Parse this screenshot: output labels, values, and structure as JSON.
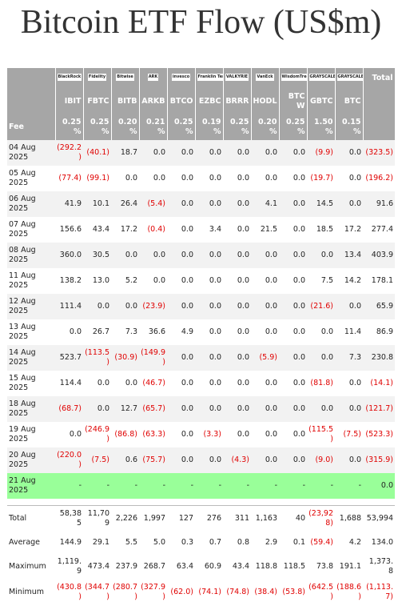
{
  "title": "Bitcoin ETF Flow (US$m)",
  "table": {
    "logos": [
      "BlackRock",
      "Fidelity",
      "Bitwise",
      "ARK",
      "invesco",
      "Franklin Templeton",
      "VALKYRIE",
      "VanEck",
      "WisdomTree",
      "GRAYSCALE",
      "GRAYSCALE",
      "Total"
    ],
    "tickers": [
      "IBIT",
      "FBTC",
      "BITB",
      "ARKB",
      "BTCO",
      "EZBC",
      "BRRR",
      "HODL",
      "BTCW",
      "GBTC",
      "BTC"
    ],
    "fee": [
      "Fee",
      "0.25%",
      "0.25%",
      "0.20%",
      "0.21%",
      "0.25%",
      "0.19%",
      "0.25%",
      "0.20%",
      "0.25%",
      "1.50%",
      "0.15%"
    ],
    "rows": [
      [
        "04 Aug 2025",
        "(292.2)",
        "(40.1)",
        "18.7",
        "0.0",
        "0.0",
        "0.0",
        "0.0",
        "0.0",
        "0.0",
        "(9.9)",
        "0.0",
        "(323.5)"
      ],
      [
        "05 Aug 2025",
        "(77.4)",
        "(99.1)",
        "0.0",
        "0.0",
        "0.0",
        "0.0",
        "0.0",
        "0.0",
        "0.0",
        "(19.7)",
        "0.0",
        "(196.2)"
      ],
      [
        "06 Aug 2025",
        "41.9",
        "10.1",
        "26.4",
        "(5.4)",
        "0.0",
        "0.0",
        "0.0",
        "4.1",
        "0.0",
        "14.5",
        "0.0",
        "91.6"
      ],
      [
        "07 Aug 2025",
        "156.6",
        "43.4",
        "17.2",
        "(0.4)",
        "0.0",
        "3.4",
        "0.0",
        "21.5",
        "0.0",
        "18.5",
        "17.2",
        "277.4"
      ],
      [
        "08 Aug 2025",
        "360.0",
        "30.5",
        "0.0",
        "0.0",
        "0.0",
        "0.0",
        "0.0",
        "0.0",
        "0.0",
        "0.0",
        "13.4",
        "403.9"
      ],
      [
        "11 Aug 2025",
        "138.2",
        "13.0",
        "5.2",
        "0.0",
        "0.0",
        "0.0",
        "0.0",
        "0.0",
        "0.0",
        "7.5",
        "14.2",
        "178.1"
      ],
      [
        "12 Aug 2025",
        "111.4",
        "0.0",
        "0.0",
        "(23.9)",
        "0.0",
        "0.0",
        "0.0",
        "0.0",
        "0.0",
        "(21.6)",
        "0.0",
        "65.9"
      ],
      [
        "13 Aug 2025",
        "0.0",
        "26.7",
        "7.3",
        "36.6",
        "4.9",
        "0.0",
        "0.0",
        "0.0",
        "0.0",
        "0.0",
        "11.4",
        "86.9"
      ],
      [
        "14 Aug 2025",
        "523.7",
        "(113.5)",
        "(30.9)",
        "(149.9)",
        "0.0",
        "0.0",
        "0.0",
        "(5.9)",
        "0.0",
        "0.0",
        "7.3",
        "230.8"
      ],
      [
        "15 Aug 2025",
        "114.4",
        "0.0",
        "0.0",
        "(46.7)",
        "0.0",
        "0.0",
        "0.0",
        "0.0",
        "0.0",
        "(81.8)",
        "0.0",
        "(14.1)"
      ],
      [
        "18 Aug 2025",
        "(68.7)",
        "0.0",
        "12.7",
        "(65.7)",
        "0.0",
        "0.0",
        "0.0",
        "0.0",
        "0.0",
        "0.0",
        "0.0",
        "(121.7)"
      ],
      [
        "19 Aug 2025",
        "0.0",
        "(246.9)",
        "(86.8)",
        "(63.3)",
        "0.0",
        "(3.3)",
        "0.0",
        "0.0",
        "0.0",
        "(115.5)",
        "(7.5)",
        "(523.3)"
      ],
      [
        "20 Aug 2025",
        "(220.0)",
        "(7.5)",
        "0.6",
        "(75.7)",
        "0.0",
        "0.0",
        "(4.3)",
        "0.0",
        "0.0",
        "(9.0)",
        "0.0",
        "(315.9)"
      ]
    ],
    "pending_row": [
      "21 Aug 2025",
      "-",
      "-",
      "-",
      "-",
      "-",
      "-",
      "-",
      "-",
      "-",
      "-",
      "-",
      "0.0"
    ],
    "summary": [
      [
        "Total",
        "58,385",
        "11,709",
        "2,226",
        "1,997",
        "127",
        "276",
        "311",
        "1,163",
        "40",
        "(23,928)",
        "1,688",
        "53,994"
      ],
      [
        "Average",
        "144.9",
        "29.1",
        "5.5",
        "5.0",
        "0.3",
        "0.7",
        "0.8",
        "2.9",
        "0.1",
        "(59.4)",
        "4.2",
        "134.0"
      ],
      [
        "Maximum",
        "1,119.9",
        "473.4",
        "237.9",
        "268.7",
        "63.4",
        "60.9",
        "43.4",
        "118.8",
        "118.5",
        "73.8",
        "191.1",
        "1,373.8"
      ],
      [
        "Minimum",
        "(430.8)",
        "(344.7)",
        "(280.7)",
        "(327.9)",
        "(62.0)",
        "(74.1)",
        "(74.8)",
        "(38.4)",
        "(53.8)",
        "(642.5)",
        "(188.6)",
        "(1,113.7)"
      ]
    ]
  }
}
